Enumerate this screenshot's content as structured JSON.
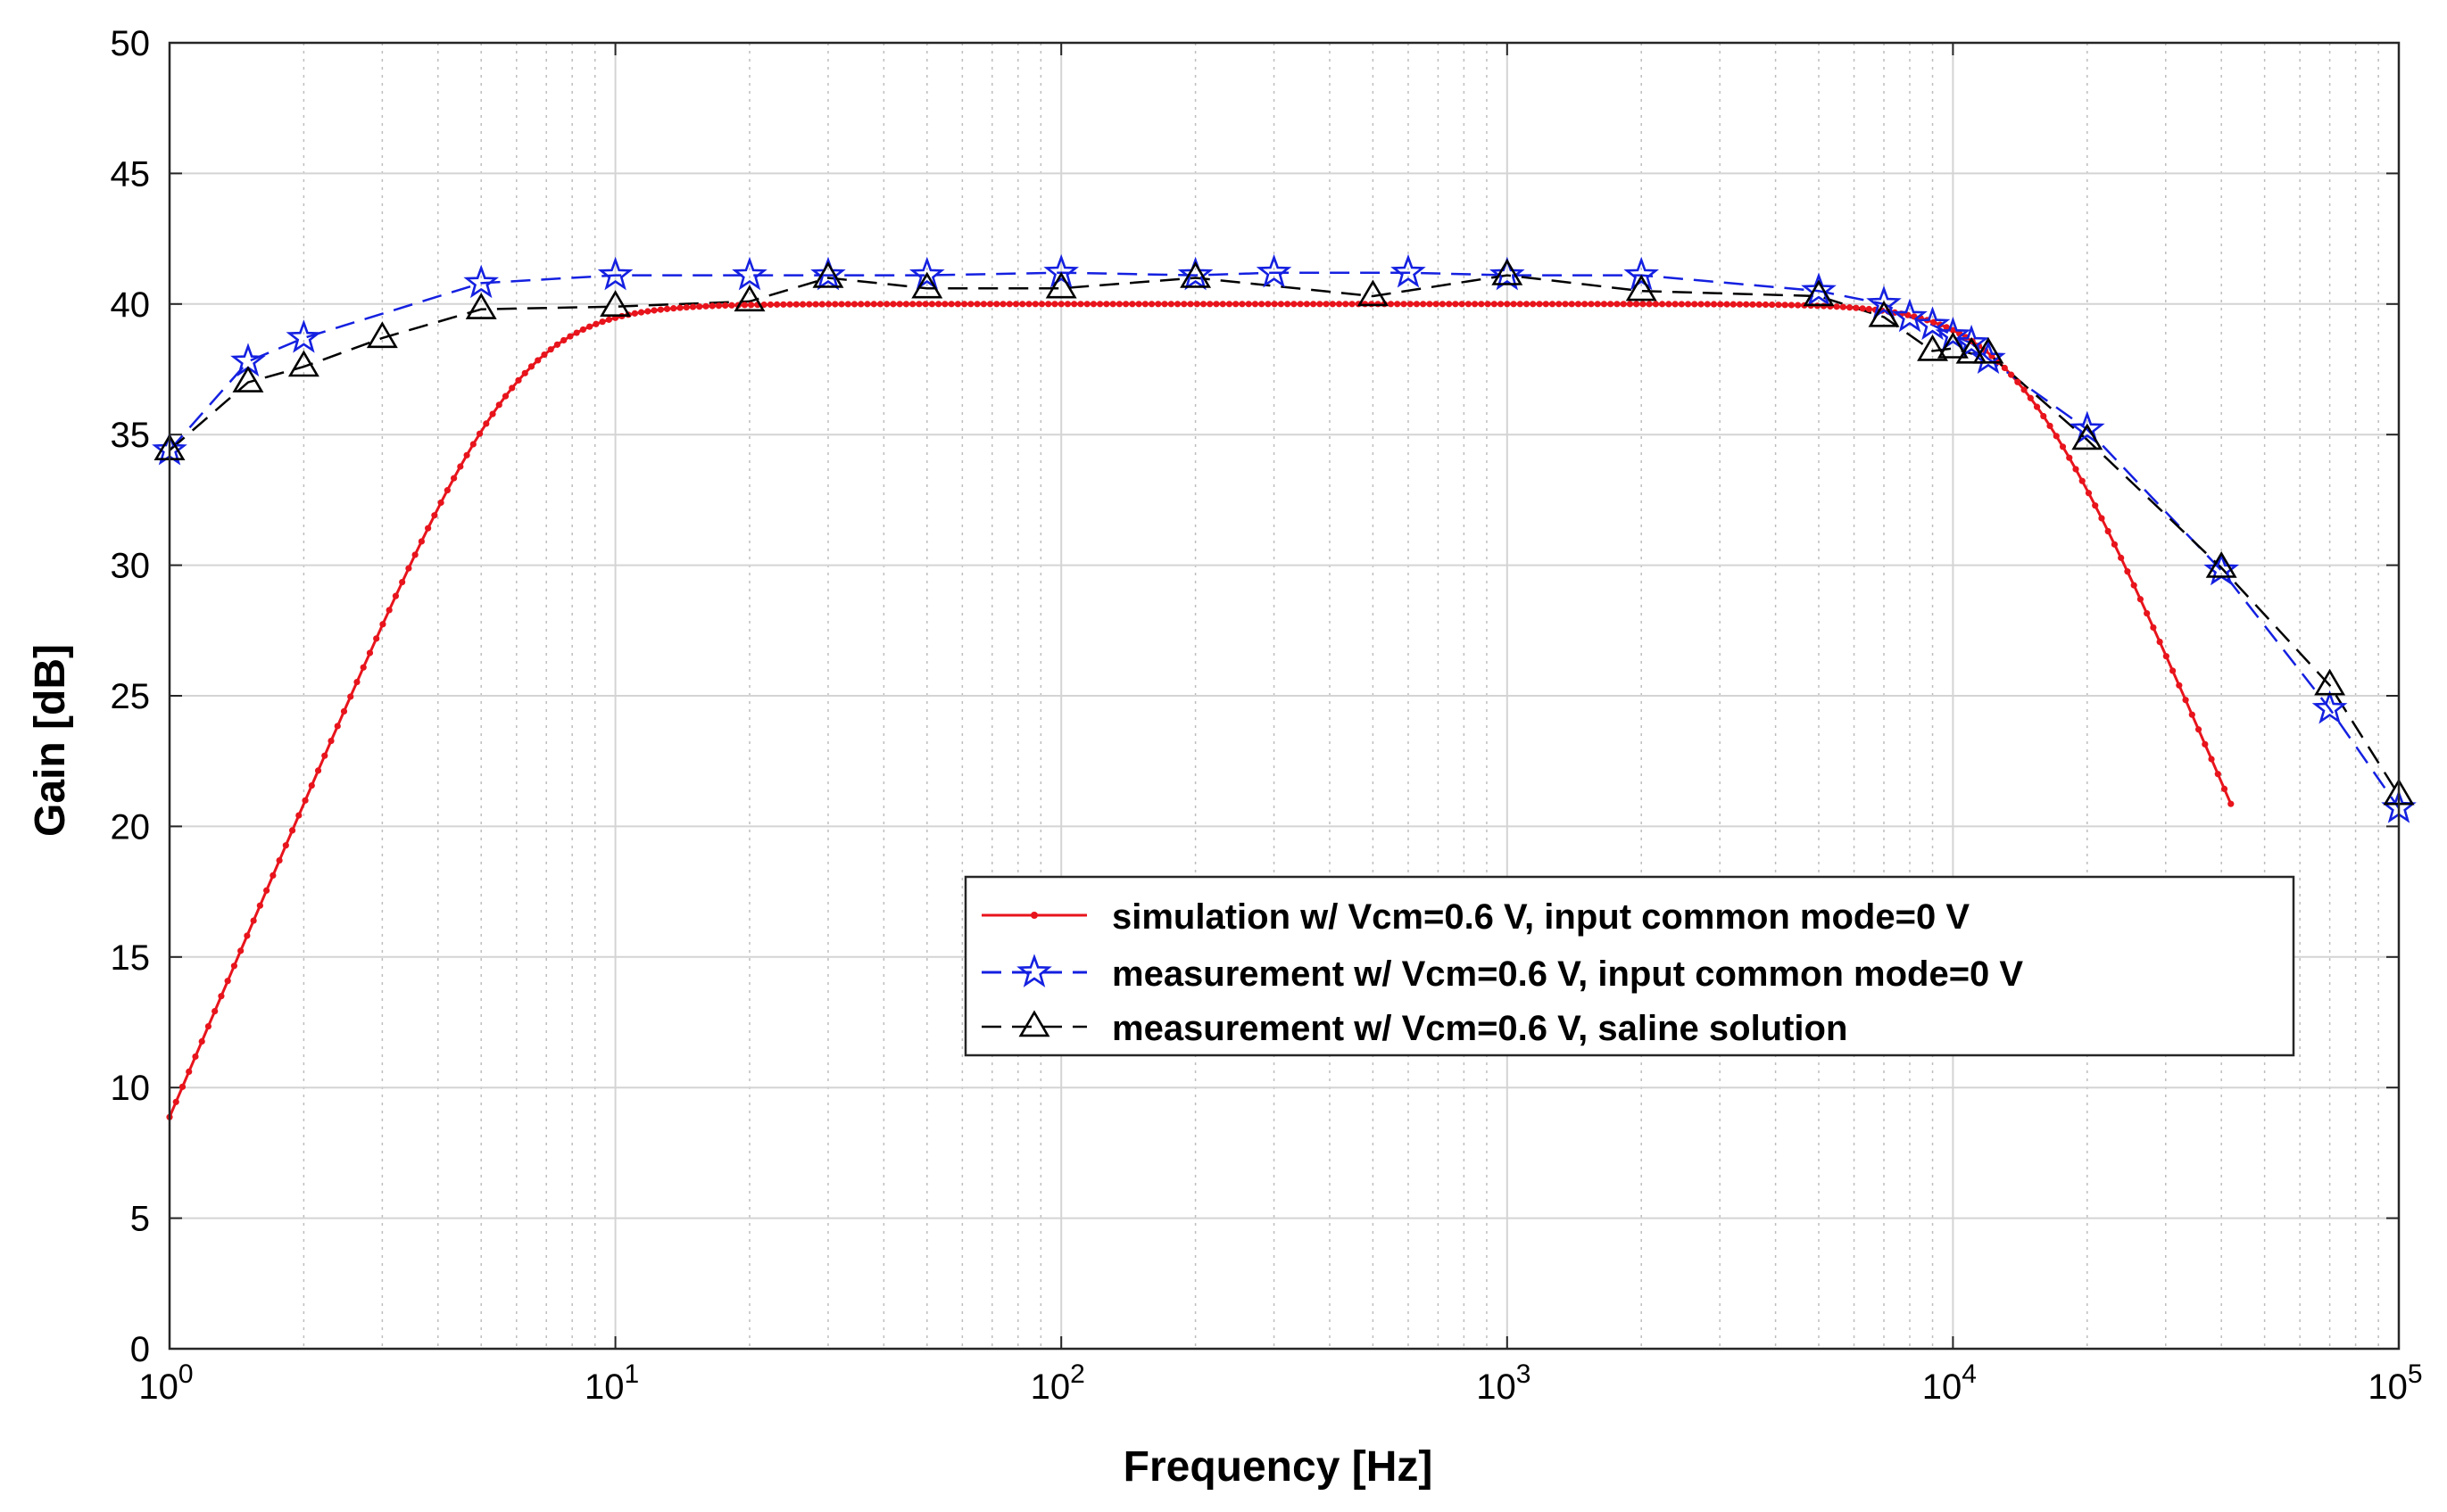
{
  "chart_data": {
    "type": "line",
    "title": "",
    "xlabel": "Frequency [Hz]",
    "ylabel": "Gain [dB]",
    "xscale": "log",
    "xlim": [
      1,
      100000
    ],
    "ylim": [
      0,
      50
    ],
    "grid": true,
    "legend_position": "lower-right",
    "x_ticks": [
      {
        "value": 1,
        "base": "10",
        "exp": "0"
      },
      {
        "value": 10,
        "base": "10",
        "exp": "1"
      },
      {
        "value": 100,
        "base": "10",
        "exp": "2"
      },
      {
        "value": 1000,
        "base": "10",
        "exp": "3"
      },
      {
        "value": 10000,
        "base": "10",
        "exp": "4"
      },
      {
        "value": 100000,
        "base": "10",
        "exp": "5"
      }
    ],
    "y_ticks": [
      "0",
      "5",
      "10",
      "15",
      "20",
      "25",
      "30",
      "35",
      "40",
      "45",
      "50"
    ],
    "series": [
      {
        "name": "simulation w/ Vcm=0.6 V, input common mode=0 V",
        "color": "#e8141c",
        "marker": "dot",
        "dash": "solid",
        "model": {
          "midband_gain_db": 40,
          "high_pass_corner_hz": 6,
          "low_pass_corner_hz": 14000,
          "order": 2,
          "f_start": 1,
          "f_end": 42000,
          "points": 320
        }
      },
      {
        "name": "measurement w/ Vcm=0.6 V, input common mode=0 V",
        "color": "#1420e0",
        "marker": "star",
        "dash": "dashed",
        "x": [
          1,
          1.5,
          2,
          5,
          10,
          20,
          30,
          50,
          100,
          200,
          300,
          600,
          1000,
          2000,
          5000,
          7000,
          8000,
          9000,
          10000,
          11000,
          12000,
          20000,
          40000,
          70000,
          100000
        ],
        "y": [
          34.4,
          37.8,
          38.7,
          40.8,
          41.1,
          41.1,
          41.1,
          41.1,
          41.2,
          41.1,
          41.2,
          41.2,
          41.1,
          41.1,
          40.5,
          40.0,
          39.5,
          39.2,
          38.8,
          38.5,
          37.9,
          35.2,
          29.8,
          24.5,
          20.7
        ]
      },
      {
        "name": "measurement w/ Vcm=0.6 V, saline solution",
        "color": "#000000",
        "marker": "triangle",
        "dash": "dashed",
        "x": [
          1,
          1.5,
          2,
          3,
          5,
          10,
          20,
          30,
          50,
          100,
          200,
          500,
          1000,
          2000,
          5000,
          7000,
          9000,
          10000,
          11000,
          12000,
          20000,
          40000,
          70000,
          100000
        ],
        "y": [
          34.4,
          37.0,
          37.6,
          38.7,
          39.8,
          39.9,
          40.1,
          41.0,
          40.6,
          40.6,
          41.0,
          40.3,
          41.1,
          40.5,
          40.3,
          39.5,
          38.2,
          38.3,
          38.1,
          38.1,
          34.8,
          29.9,
          25.4,
          21.2
        ]
      }
    ]
  }
}
